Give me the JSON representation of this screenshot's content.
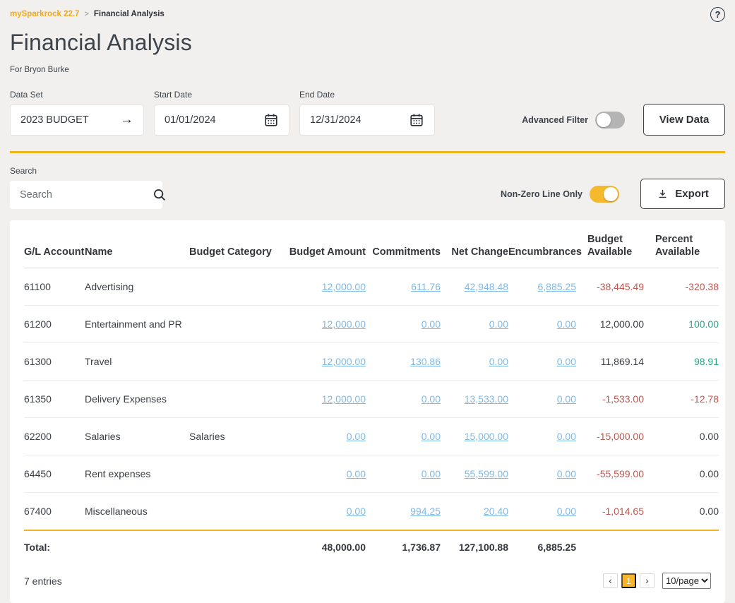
{
  "breadcrumb": {
    "brand": "mySparkrock 22.7",
    "separator": ">",
    "current": "Financial Analysis"
  },
  "header": {
    "title": "Financial Analysis",
    "subtitle": "For Bryon Burke",
    "help_icon": "question-mark-circle"
  },
  "filters": {
    "dataset": {
      "label": "Data Set",
      "value": "2023 BUDGET",
      "icon": "arrow-right",
      "arrow_glyph": "→"
    },
    "start_date": {
      "label": "Start Date",
      "value": "01/01/2024",
      "icon": "calendar"
    },
    "end_date": {
      "label": "End Date",
      "value": "12/31/2024",
      "icon": "calendar"
    },
    "advanced_filter": {
      "label": "Advanced Filter",
      "state": "off"
    },
    "view_data_label": "View Data"
  },
  "toolbar": {
    "search_label": "Search",
    "search_placeholder": "Search",
    "search_icon": "magnifier",
    "nonzero_toggle": {
      "label": "Non-Zero Line Only",
      "state": "on"
    },
    "export_label": "Export",
    "export_icon": "download"
  },
  "table": {
    "columns": [
      "G/L Account",
      "Name",
      "Budget Category",
      "Budget Amount",
      "Commitments",
      "Net Change",
      "Encumbrances",
      "Budget Available",
      "Percent Available"
    ],
    "rows": [
      {
        "account": "61100",
        "name": "Advertising",
        "category": "",
        "budget_amount": "12,000.00",
        "commitments": "611.76",
        "net_change": "42,948.48",
        "encumbrances": "6,885.25",
        "budget_available": "-38,445.49",
        "percent_available": "-320.38"
      },
      {
        "account": "61200",
        "name": "Entertainment and PR",
        "category": "",
        "budget_amount": "12,000.00",
        "commitments": "0.00",
        "net_change": "0.00",
        "encumbrances": "0.00",
        "budget_available": "12,000.00",
        "percent_available": "100.00"
      },
      {
        "account": "61300",
        "name": "Travel",
        "category": "",
        "budget_amount": "12,000.00",
        "commitments": "130.86",
        "net_change": "0.00",
        "encumbrances": "0.00",
        "budget_available": "11,869.14",
        "percent_available": "98.91"
      },
      {
        "account": "61350",
        "name": "Delivery Expenses",
        "category": "",
        "budget_amount": "12,000.00",
        "commitments": "0.00",
        "net_change": "13,533.00",
        "encumbrances": "0.00",
        "budget_available": "-1,533.00",
        "percent_available": "-12.78"
      },
      {
        "account": "62200",
        "name": "Salaries",
        "category": "Salaries",
        "budget_amount": "0.00",
        "commitments": "0.00",
        "net_change": "15,000.00",
        "encumbrances": "0.00",
        "budget_available": "-15,000.00",
        "percent_available": "0.00"
      },
      {
        "account": "64450",
        "name": "Rent expenses",
        "category": "",
        "budget_amount": "0.00",
        "commitments": "0.00",
        "net_change": "55,599.00",
        "encumbrances": "0.00",
        "budget_available": "-55,599.00",
        "percent_available": "0.00"
      },
      {
        "account": "67400",
        "name": "Miscellaneous",
        "category": "",
        "budget_amount": "0.00",
        "commitments": "994.25",
        "net_change": "20.40",
        "encumbrances": "0.00",
        "budget_available": "-1,014.65",
        "percent_available": "0.00"
      }
    ],
    "total": {
      "label": "Total:",
      "budget_amount": "48,000.00",
      "commitments": "1,736.87",
      "net_change": "127,100.88",
      "encumbrances": "6,885.25"
    }
  },
  "footer": {
    "entries": "7 entries",
    "pagination": {
      "prev_glyph": "‹",
      "current_page": "1",
      "next_glyph": "›",
      "page_size": "10/page"
    }
  },
  "colors": {
    "brand_orange": "#f0a81d",
    "accent_gold": "#f2b41c",
    "toggle_on": "#f5b92d",
    "active_page": "#f7b42c",
    "link_blue": "#7fb9e6",
    "negative_red": "#bd574f",
    "positive_green": "#2aa184",
    "background": "#f1f0ee",
    "card": "#ffffff"
  }
}
